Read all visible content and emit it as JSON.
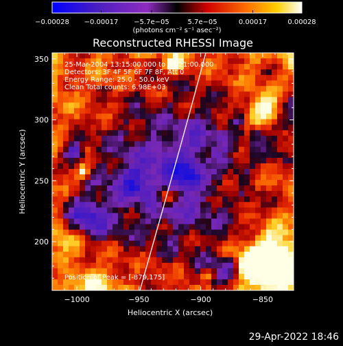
{
  "chart_data": {
    "type": "heatmap",
    "title": "Reconstructed RHESSI Image",
    "xlabel": "Heliocentric X (arcsec)",
    "ylabel": "Heliocentric Y (arcsec)",
    "xlim": [
      -1020,
      -825
    ],
    "ylim": [
      160,
      355
    ],
    "x_ticks": [
      {
        "v": -1000,
        "label": "−1000"
      },
      {
        "v": -950,
        "label": "−950"
      },
      {
        "v": -900,
        "label": "−900"
      },
      {
        "v": -850,
        "label": "−850"
      }
    ],
    "y_ticks": [
      {
        "v": 200,
        "label": "200"
      },
      {
        "v": 250,
        "label": "250"
      },
      {
        "v": 300,
        "label": "300"
      },
      {
        "v": 350,
        "label": "350"
      }
    ],
    "colorbar": {
      "min": -0.00028,
      "max": 0.00028,
      "ticks": [
        {
          "v": -0.00028,
          "label": "−0.00028"
        },
        {
          "v": -0.00017,
          "label": "−0.00017"
        },
        {
          "v": -5.7e-05,
          "label": "−5.7e−05"
        },
        {
          "v": 5.7e-05,
          "label": "5.7e−05"
        },
        {
          "v": 0.00017,
          "label": "0.00017"
        },
        {
          "v": 0.00028,
          "label": "0.00028"
        }
      ],
      "units": "(photons cm⁻² s⁻¹ asec⁻²)",
      "colors": [
        "#0000ff",
        "#5a1eb4",
        "#9b2fc0",
        "#000000",
        "#ff0000",
        "#ff8c00",
        "#ffff00",
        "#ffffff"
      ]
    },
    "annotations": [
      "25-Mar-2004 13:15:00.000 to 13:21:00.000",
      "Detectors: 3F 4F 5F 6F 7F 8F, Att 0",
      "Energy Range: 25.0 - 50.0 keV",
      "Clean     Total counts: 6.98E+03"
    ],
    "peak_label": "Position of Peak = [-879,175]",
    "peak_position": [
      -879,
      175
    ]
  },
  "footer": {
    "timestamp": "29-Apr-2022 18:46"
  }
}
